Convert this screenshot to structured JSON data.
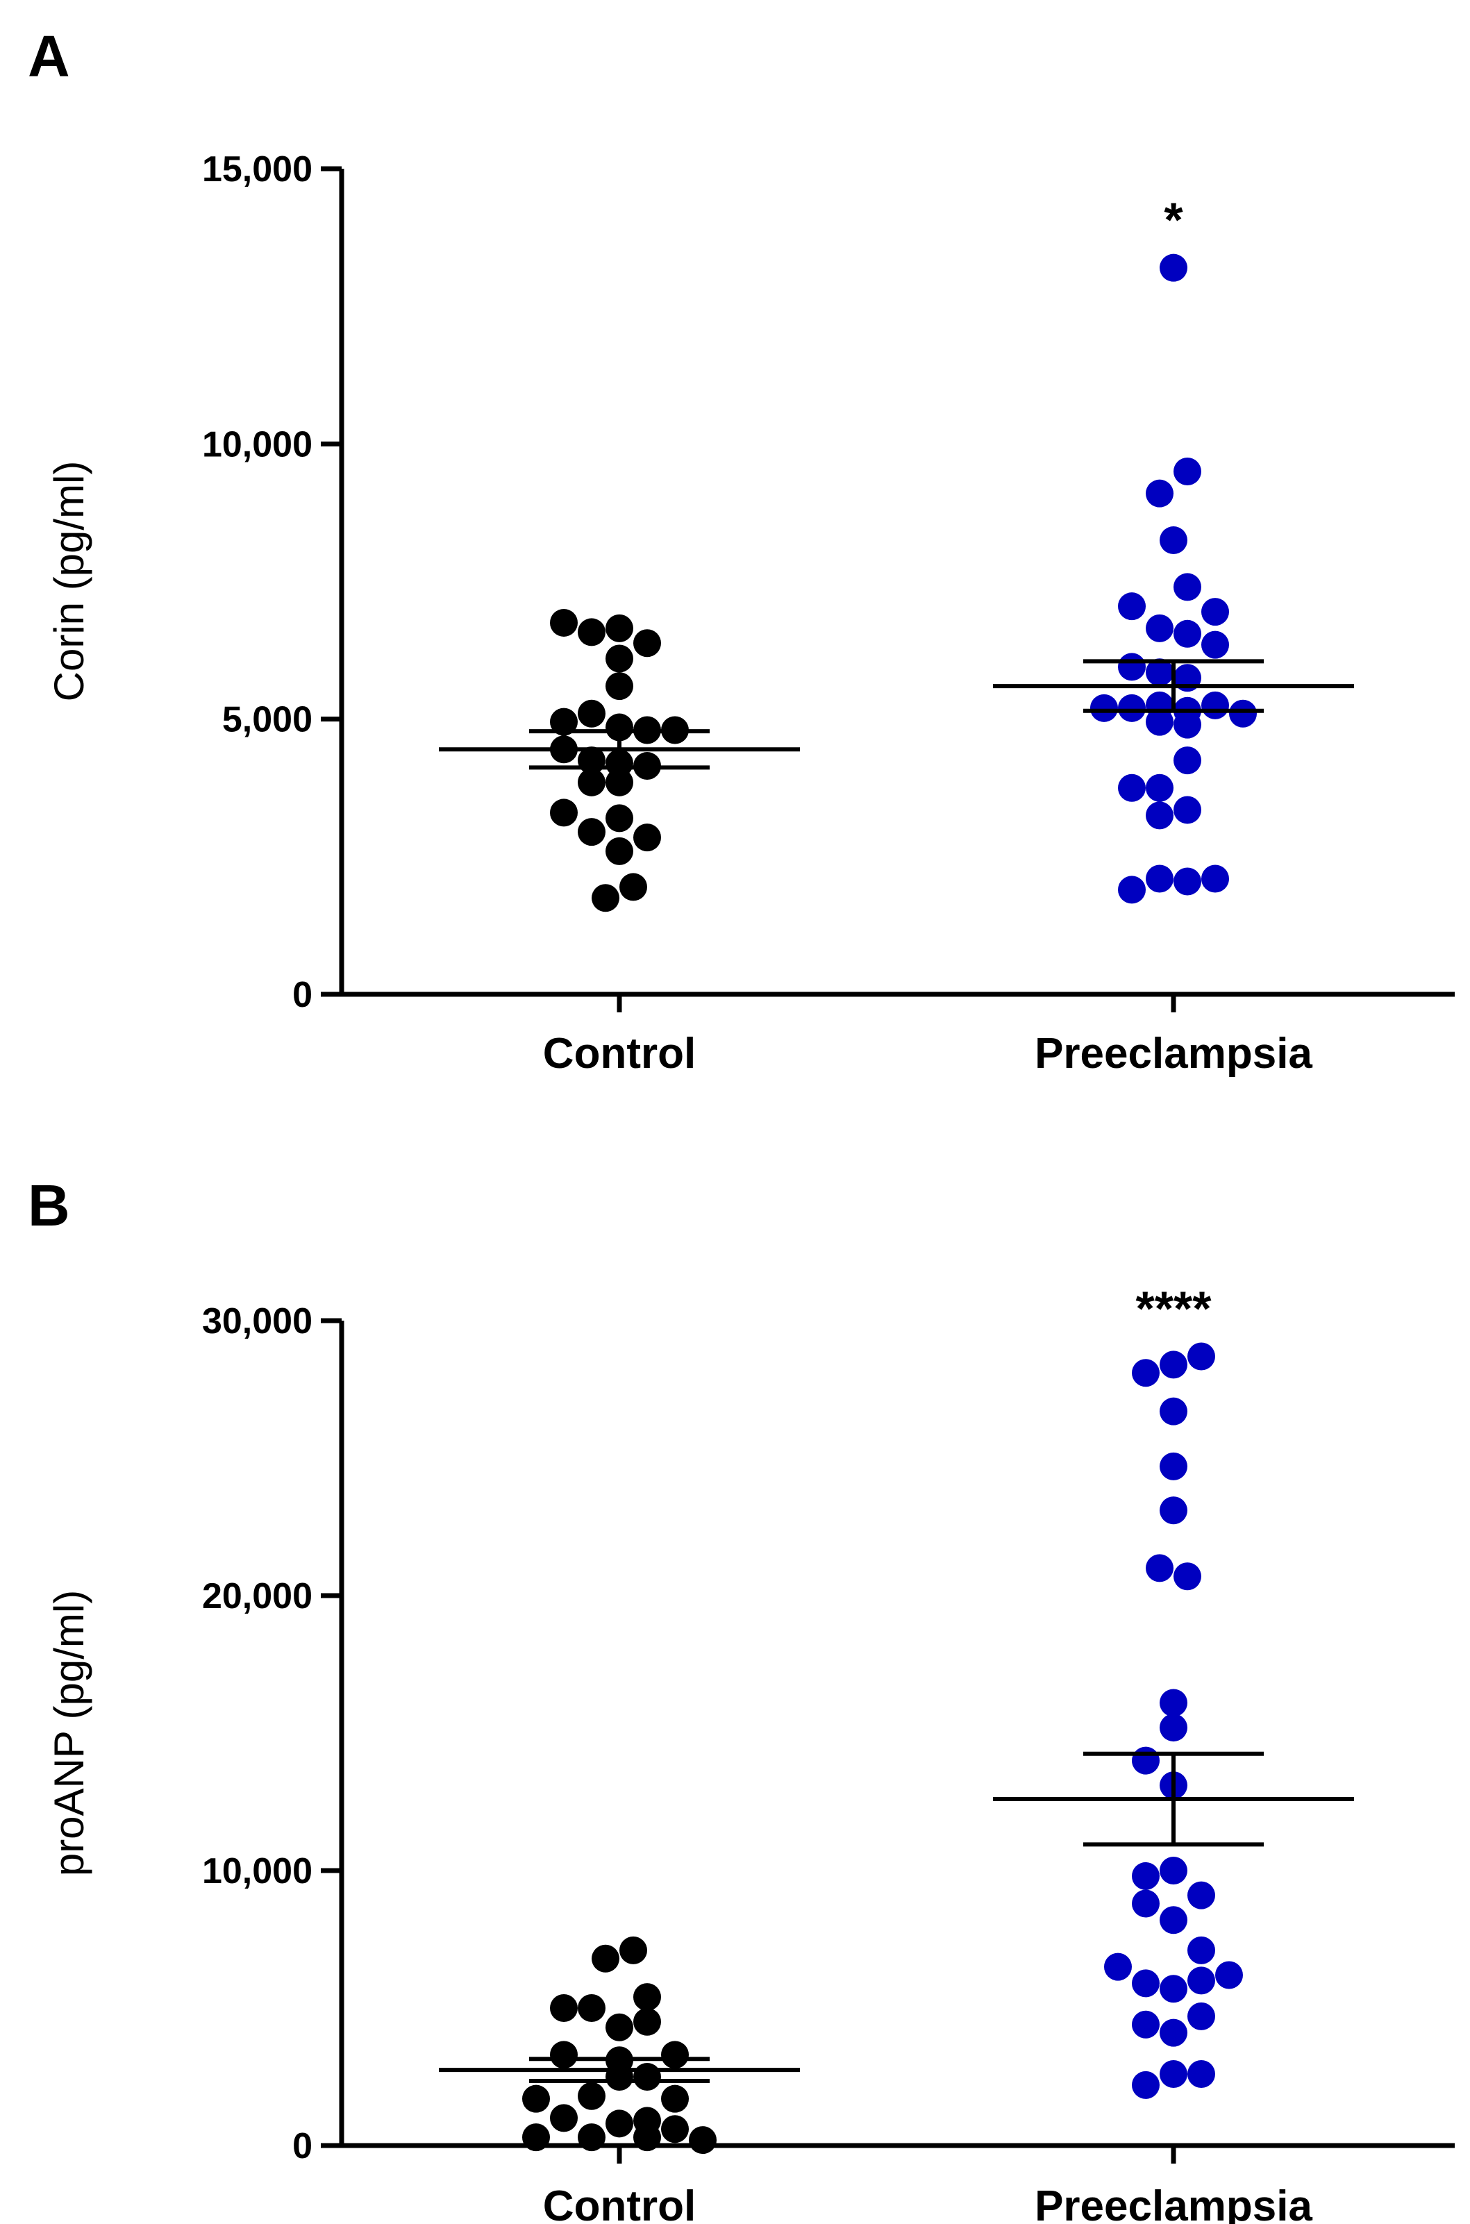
{
  "chart_data": [
    {
      "panel": "A",
      "type": "scatter",
      "ylabel": "Corin (pg/ml)",
      "ylim": [
        0,
        15000
      ],
      "yticks": [
        0,
        5000,
        10000,
        15000
      ],
      "ytick_labels": [
        "0",
        "5,000",
        "10,000",
        "15,000"
      ],
      "categories": [
        "Control",
        "Preeclampsia"
      ],
      "groups": [
        {
          "name": "Control",
          "color": "#000000",
          "mean": 4450,
          "sem": [
            4120,
            4780
          ],
          "points": [
            {
              "dx": -2,
              "y": 6750
            },
            {
              "dx": -1,
              "y": 6580
            },
            {
              "dx": 0,
              "y": 6650
            },
            {
              "dx": 1,
              "y": 6380
            },
            {
              "dx": 0,
              "y": 6100
            },
            {
              "dx": 0,
              "y": 5600
            },
            {
              "dx": -2,
              "y": 4950
            },
            {
              "dx": -1,
              "y": 5100
            },
            {
              "dx": 0,
              "y": 4850
            },
            {
              "dx": 1,
              "y": 4800
            },
            {
              "dx": 2,
              "y": 4800
            },
            {
              "dx": -2,
              "y": 4450
            },
            {
              "dx": -1,
              "y": 4250
            },
            {
              "dx": 0,
              "y": 4200
            },
            {
              "dx": 1,
              "y": 4150
            },
            {
              "dx": -1,
              "y": 3850
            },
            {
              "dx": 0,
              "y": 3850
            },
            {
              "dx": -2,
              "y": 3300
            },
            {
              "dx": -1,
              "y": 2950
            },
            {
              "dx": 0,
              "y": 3200
            },
            {
              "dx": 1,
              "y": 2850
            },
            {
              "dx": 0,
              "y": 2600
            },
            {
              "dx": -0.5,
              "y": 1750
            },
            {
              "dx": 0.5,
              "y": 1950
            }
          ]
        },
        {
          "name": "Preeclampsia",
          "color": "#0000c0",
          "mean": 5600,
          "sem": [
            5150,
            6050
          ],
          "points": [
            {
              "dx": 0,
              "y": 13200
            },
            {
              "dx": 0.5,
              "y": 9500
            },
            {
              "dx": -0.5,
              "y": 9100
            },
            {
              "dx": 0,
              "y": 8250
            },
            {
              "dx": 0.5,
              "y": 7400
            },
            {
              "dx": -1.5,
              "y": 7050
            },
            {
              "dx": 1.5,
              "y": 6950
            },
            {
              "dx": -0.5,
              "y": 6650
            },
            {
              "dx": 0.5,
              "y": 6550
            },
            {
              "dx": 1.5,
              "y": 6350
            },
            {
              "dx": -1.5,
              "y": 5950
            },
            {
              "dx": -0.5,
              "y": 5850
            },
            {
              "dx": 0.5,
              "y": 5750
            },
            {
              "dx": -2.5,
              "y": 5200
            },
            {
              "dx": -1.5,
              "y": 5200
            },
            {
              "dx": -0.5,
              "y": 5250
            },
            {
              "dx": 0.5,
              "y": 5150
            },
            {
              "dx": 1.5,
              "y": 5250
            },
            {
              "dx": 2.5,
              "y": 5100
            },
            {
              "dx": -0.5,
              "y": 4950
            },
            {
              "dx": 0.5,
              "y": 4900
            },
            {
              "dx": 0.5,
              "y": 4250
            },
            {
              "dx": -1.5,
              "y": 3750
            },
            {
              "dx": -0.5,
              "y": 3750
            },
            {
              "dx": -0.5,
              "y": 3250
            },
            {
              "dx": 0.5,
              "y": 3350
            },
            {
              "dx": -1.5,
              "y": 1900
            },
            {
              "dx": -0.5,
              "y": 2100
            },
            {
              "dx": 0.5,
              "y": 2050
            },
            {
              "dx": 1.5,
              "y": 2100
            }
          ]
        }
      ],
      "significance": [
        {
          "group": "Preeclampsia",
          "label": "*"
        }
      ]
    },
    {
      "panel": "B",
      "type": "scatter",
      "ylabel": "proANP (pg/ml)",
      "ylim": [
        0,
        30000
      ],
      "yticks": [
        0,
        10000,
        20000,
        30000
      ],
      "ytick_labels": [
        "0",
        "10,000",
        "20,000",
        "30,000"
      ],
      "categories": [
        "Control",
        "Preeclampsia"
      ],
      "groups": [
        {
          "name": "Control",
          "color": "#000000",
          "mean": 2750,
          "sem": [
            2350,
            3150
          ],
          "points": [
            {
              "dx": -0.5,
              "y": 6800
            },
            {
              "dx": 0.5,
              "y": 7100
            },
            {
              "dx": -2,
              "y": 5000
            },
            {
              "dx": -1,
              "y": 5000
            },
            {
              "dx": 1,
              "y": 5400
            },
            {
              "dx": 0,
              "y": 4300
            },
            {
              "dx": 1,
              "y": 4500
            },
            {
              "dx": -2,
              "y": 3300
            },
            {
              "dx": 2,
              "y": 3300
            },
            {
              "dx": 0,
              "y": 3100
            },
            {
              "dx": 0,
              "y": 2500
            },
            {
              "dx": 1,
              "y": 2500
            },
            {
              "dx": -1,
              "y": 1800
            },
            {
              "dx": -3,
              "y": 1700
            },
            {
              "dx": 2,
              "y": 1700
            },
            {
              "dx": -2,
              "y": 1000
            },
            {
              "dx": 0,
              "y": 800
            },
            {
              "dx": 1,
              "y": 900
            },
            {
              "dx": -3,
              "y": 300
            },
            {
              "dx": -1,
              "y": 300
            },
            {
              "dx": 1,
              "y": 300
            },
            {
              "dx": 2,
              "y": 600
            },
            {
              "dx": 3,
              "y": 200
            }
          ]
        },
        {
          "name": "Preeclampsia",
          "color": "#0000c0",
          "mean": 12600,
          "sem": [
            10950,
            14250
          ],
          "points": [
            {
              "dx": -1,
              "y": 28100
            },
            {
              "dx": 0,
              "y": 28400
            },
            {
              "dx": 1,
              "y": 28700
            },
            {
              "dx": 0,
              "y": 26700
            },
            {
              "dx": 0,
              "y": 24700
            },
            {
              "dx": 0,
              "y": 23100
            },
            {
              "dx": -0.5,
              "y": 21000
            },
            {
              "dx": 0.5,
              "y": 20700
            },
            {
              "dx": 0,
              "y": 16100
            },
            {
              "dx": 0,
              "y": 15200
            },
            {
              "dx": -1,
              "y": 14000
            },
            {
              "dx": 0,
              "y": 13100
            },
            {
              "dx": -1,
              "y": 9800
            },
            {
              "dx": 0,
              "y": 10000
            },
            {
              "dx": -1,
              "y": 8800
            },
            {
              "dx": 1,
              "y": 9100
            },
            {
              "dx": 0,
              "y": 8200
            },
            {
              "dx": 1,
              "y": 7100
            },
            {
              "dx": -2,
              "y": 6500
            },
            {
              "dx": 2,
              "y": 6200
            },
            {
              "dx": -1,
              "y": 5900
            },
            {
              "dx": 0,
              "y": 5700
            },
            {
              "dx": 1,
              "y": 6000
            },
            {
              "dx": -1,
              "y": 4400
            },
            {
              "dx": 0,
              "y": 4100
            },
            {
              "dx": 1,
              "y": 4700
            },
            {
              "dx": -1,
              "y": 2200
            },
            {
              "dx": 0,
              "y": 2600
            },
            {
              "dx": 1,
              "y": 2600
            }
          ]
        }
      ],
      "significance": [
        {
          "group": "Preeclampsia",
          "label": "****"
        }
      ]
    }
  ]
}
